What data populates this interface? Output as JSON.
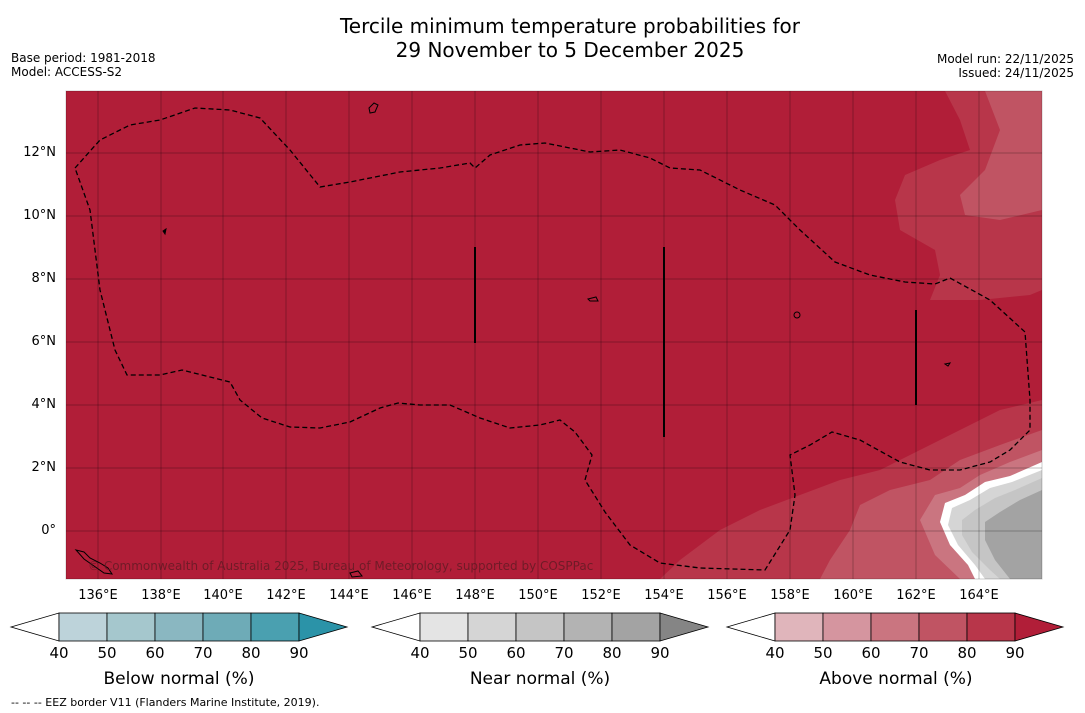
{
  "title_line1": "Tercile minimum temperature probabilities for",
  "title_line2": "29 November to 5 December 2025",
  "left_meta": {
    "base_period": "Base period: 1981-2018",
    "model": "Model: ACCESS-S2"
  },
  "right_meta": {
    "model_run": "Model run: 22/11/2025",
    "issued": "Issued: 24/11/2025"
  },
  "y_ticks": [
    "12°N",
    "10°N",
    "8°N",
    "6°N",
    "4°N",
    "2°N",
    "0°"
  ],
  "x_ticks": [
    "136°E",
    "138°E",
    "140°E",
    "142°E",
    "144°E",
    "146°E",
    "148°E",
    "150°E",
    "152°E",
    "154°E",
    "156°E",
    "158°E",
    "160°E",
    "162°E",
    "164°E"
  ],
  "copyright": "© Commonwealth of Australia 2025, Bureau of Meteorology, supported by COSPPac",
  "colorbars": [
    {
      "label": "Below normal (%)",
      "ticks": [
        "40",
        "50",
        "60",
        "70",
        "80",
        "90"
      ],
      "colors": [
        "#bdd3da",
        "#a5c7cd",
        "#8ab7c1",
        "#6eabb7",
        "#4aa0b0",
        "#2b93a8"
      ]
    },
    {
      "label": "Near normal (%)",
      "ticks": [
        "40",
        "50",
        "60",
        "70",
        "80",
        "90"
      ],
      "colors": [
        "#e4e4e4",
        "#d5d5d5",
        "#c5c5c5",
        "#b3b3b3",
        "#a3a3a3",
        "#858585"
      ]
    },
    {
      "label": "Above normal (%)",
      "ticks": [
        "40",
        "50",
        "60",
        "70",
        "80",
        "90"
      ],
      "colors": [
        "#e0b5bb",
        "#d5959f",
        "#ca7580",
        "#c05463",
        "#b8364a",
        "#b11e38"
      ]
    }
  ],
  "footnote": "--  --  -- EEZ border V11 (Flanders Marine Institute, 2019).",
  "colors": {
    "main": "#b11e38",
    "high": "#b8364a",
    "mid": "#c05463",
    "low": "#ca7580",
    "near1": "#c5c5c5",
    "near2": "#a3a3a3"
  }
}
